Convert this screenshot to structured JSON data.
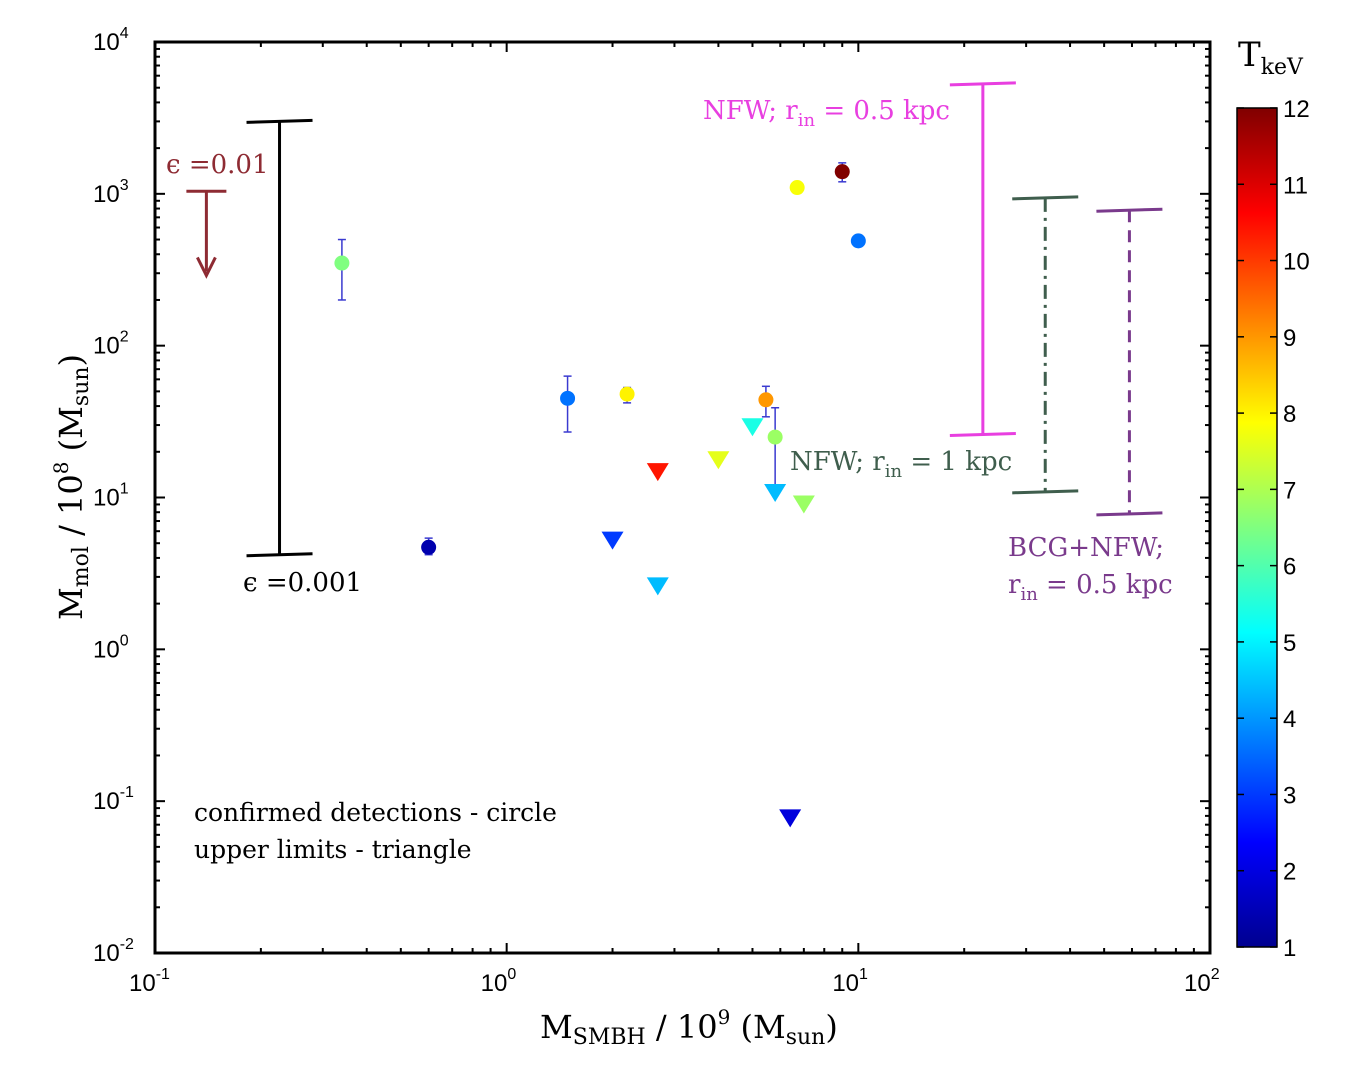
{
  "chart_data": {
    "type": "scatter",
    "xscale": "log",
    "yscale": "log",
    "xlim": [
      0.1,
      100
    ],
    "ylim": [
      0.01,
      10000
    ],
    "xlabel": "M_SMBH / 10^9 (M_sun)",
    "ylabel": "M_mol / 10^8 (M_sun)",
    "x_tick_labels": [
      {
        "base": "10",
        "exp": "-1"
      },
      {
        "base": "10",
        "exp": "0"
      },
      {
        "base": "10",
        "exp": "1"
      },
      {
        "base": "10",
        "exp": "2"
      }
    ],
    "y_tick_labels": [
      {
        "base": "10",
        "exp": "-2"
      },
      {
        "base": "10",
        "exp": "-1"
      },
      {
        "base": "10",
        "exp": "0"
      },
      {
        "base": "10",
        "exp": "1"
      },
      {
        "base": "10",
        "exp": "2"
      },
      {
        "base": "10",
        "exp": "3"
      },
      {
        "base": "10",
        "exp": "4"
      }
    ],
    "colorbar": {
      "title_main": "T",
      "title_sub": "keV",
      "range": [
        1,
        12
      ],
      "ticks": [
        "1",
        "2",
        "3",
        "4",
        "5",
        "6",
        "7",
        "8",
        "9",
        "10",
        "11",
        "12"
      ],
      "colormap": "jet"
    },
    "detections": [
      {
        "x": 0.34,
        "y": 350,
        "T": 6.5,
        "err": [
          200,
          500
        ]
      },
      {
        "x": 0.6,
        "y": 4.7,
        "T": 1.5,
        "err": [
          4.2,
          5.4
        ]
      },
      {
        "x": 1.49,
        "y": 45,
        "T": 3.6,
        "err": [
          27,
          63
        ]
      },
      {
        "x": 2.2,
        "y": 48,
        "T": 8.0,
        "err": [
          42,
          53
        ]
      },
      {
        "x": 5.46,
        "y": 44,
        "T": 9.0,
        "err": [
          34,
          54
        ]
      },
      {
        "x": 5.8,
        "y": 25,
        "T": 6.8,
        "err": [
          10.7,
          39
        ]
      },
      {
        "x": 6.7,
        "y": 1100,
        "T": 7.8,
        "err": null
      },
      {
        "x": 9.0,
        "y": 1400,
        "T": 12,
        "err": [
          1200,
          1600
        ]
      },
      {
        "x": 10,
        "y": 490,
        "T": 3.6,
        "err": null
      }
    ],
    "upper_limits": [
      {
        "x": 2.69,
        "y": 14.7,
        "T": 10.4
      },
      {
        "x": 2.0,
        "y": 5.2,
        "T": 3.0
      },
      {
        "x": 2.69,
        "y": 2.6,
        "T": 4.4
      },
      {
        "x": 4.0,
        "y": 17.6,
        "T": 7.6
      },
      {
        "x": 5.0,
        "y": 29,
        "T": 5.4
      },
      {
        "x": 5.8,
        "y": 10.7,
        "T": 4.4
      },
      {
        "x": 7.0,
        "y": 9.0,
        "T": 6.8
      },
      {
        "x": 6.4,
        "y": 0.077,
        "T": 2.0
      }
    ],
    "ranges": [
      {
        "id": "eps001",
        "x": 0.226,
        "ymin": 4.2,
        "ymax": 3000,
        "color": "#000000",
        "style": "solid",
        "label": "ϵ =0.001"
      },
      {
        "id": "nfw05",
        "x": 22.6,
        "ymin": 26,
        "ymax": 5300,
        "color": "#e83fe0",
        "style": "solid",
        "label": "NFW; r",
        "label_sub": "in",
        "label_tail": " = 0.5 kpc"
      },
      {
        "id": "nfw1",
        "x": 34,
        "ymin": 10.9,
        "ymax": 940,
        "color": "#3f5e4d",
        "style": "dashdot",
        "label": "NFW; r",
        "label_sub": "in",
        "label_tail": " = 1 kpc"
      },
      {
        "id": "bcg",
        "x": 59,
        "ymin": 7.8,
        "ymax": 780,
        "color": "#7a3a8c",
        "style": "dashed",
        "label": "BCG+NFW;",
        "label2": "r",
        "label2_sub": "in",
        "label2_tail": " = 0.5 kpc"
      }
    ],
    "arrow": {
      "x": 0.14,
      "y_from": 1040,
      "y_to": 290,
      "color": "#8e2b33",
      "label": "ϵ =0.01"
    },
    "legend_text": [
      "confirmed detections - circle",
      "upper limits - triangle"
    ]
  }
}
